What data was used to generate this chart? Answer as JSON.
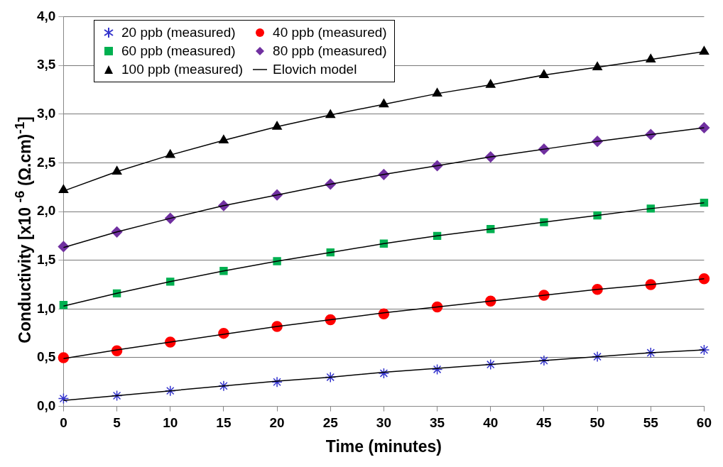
{
  "chart_data": {
    "type": "scatter",
    "xlabel": "Time (minutes)",
    "ylabel": "Conductivity [x10 $^{-6}$ (Ω.cm)$^{-1}$]",
    "x": [
      0,
      5,
      10,
      15,
      20,
      25,
      30,
      35,
      40,
      45,
      50,
      55,
      60
    ],
    "xlim": [
      0,
      60
    ],
    "xticks": [
      0,
      5,
      10,
      15,
      20,
      25,
      30,
      35,
      40,
      45,
      50,
      55,
      60
    ],
    "ylim": [
      0,
      4
    ],
    "yticks": [
      {
        "value": 0,
        "label": "0,0"
      },
      {
        "value": 0.5,
        "label": "0,5"
      },
      {
        "value": 1,
        "label": "1,0"
      },
      {
        "value": 1.5,
        "label": "1,5"
      },
      {
        "value": 2,
        "label": "2,0"
      },
      {
        "value": 2.5,
        "label": "2,5"
      },
      {
        "value": 3,
        "label": "3,0"
      },
      {
        "value": 3.5,
        "label": "3,5"
      },
      {
        "value": 4,
        "label": "4,0"
      }
    ],
    "grid": "y",
    "legend": "top left",
    "series": [
      {
        "name": "20 ppb (measured)",
        "type": "scatter",
        "marker": "cross",
        "color": "#3333cc",
        "values": [
          0.08,
          0.11,
          0.16,
          0.21,
          0.25,
          0.3,
          0.34,
          0.38,
          0.43,
          0.47,
          0.51,
          0.55,
          0.58
        ]
      },
      {
        "name": "40 ppb (measured)",
        "type": "scatter",
        "marker": "circle",
        "color": "#ff0000",
        "values": [
          0.5,
          0.57,
          0.66,
          0.75,
          0.82,
          0.89,
          0.95,
          1.02,
          1.08,
          1.14,
          1.2,
          1.25,
          1.31
        ]
      },
      {
        "name": "60 ppb (measured)",
        "type": "scatter",
        "marker": "square",
        "color": "#00b050",
        "values": [
          1.04,
          1.16,
          1.28,
          1.39,
          1.49,
          1.58,
          1.67,
          1.75,
          1.82,
          1.89,
          1.96,
          2.03,
          2.09
        ]
      },
      {
        "name": "80 ppb (measured)",
        "type": "scatter",
        "marker": "diamond",
        "color": "#7030a0",
        "values": [
          1.64,
          1.79,
          1.93,
          2.06,
          2.17,
          2.28,
          2.38,
          2.47,
          2.56,
          2.64,
          2.72,
          2.79,
          2.86
        ]
      },
      {
        "name": "100 ppb (measured)",
        "type": "scatter",
        "marker": "triangle",
        "color": "#000000",
        "values": [
          2.22,
          2.41,
          2.58,
          2.73,
          2.87,
          2.99,
          3.1,
          3.21,
          3.3,
          3.4,
          3.48,
          3.56,
          3.64
        ]
      },
      {
        "name": "Elovich model",
        "type": "line",
        "marker": "none",
        "color": "#000000",
        "values": [
          0.06,
          0.11,
          0.16,
          0.21,
          0.26,
          0.3,
          0.35,
          0.39,
          0.43,
          0.47,
          0.51,
          0.55,
          0.58
        ]
      },
      {
        "type": "line",
        "marker": "none",
        "color": "#000000",
        "values": [
          0.49,
          0.58,
          0.66,
          0.74,
          0.82,
          0.89,
          0.96,
          1.02,
          1.08,
          1.14,
          1.2,
          1.25,
          1.31
        ]
      },
      {
        "type": "line",
        "marker": "none",
        "color": "#000000",
        "values": [
          1.03,
          1.16,
          1.28,
          1.39,
          1.49,
          1.58,
          1.67,
          1.75,
          1.82,
          1.89,
          1.96,
          2.03,
          2.09
        ]
      },
      {
        "type": "line",
        "marker": "none",
        "color": "#000000",
        "values": [
          1.63,
          1.79,
          1.93,
          2.06,
          2.17,
          2.28,
          2.38,
          2.47,
          2.56,
          2.64,
          2.72,
          2.79,
          2.86
        ]
      },
      {
        "type": "line",
        "marker": "none",
        "color": "#000000",
        "values": [
          2.21,
          2.41,
          2.58,
          2.73,
          2.87,
          2.99,
          3.1,
          3.21,
          3.3,
          3.4,
          3.48,
          3.56,
          3.64
        ]
      }
    ]
  }
}
